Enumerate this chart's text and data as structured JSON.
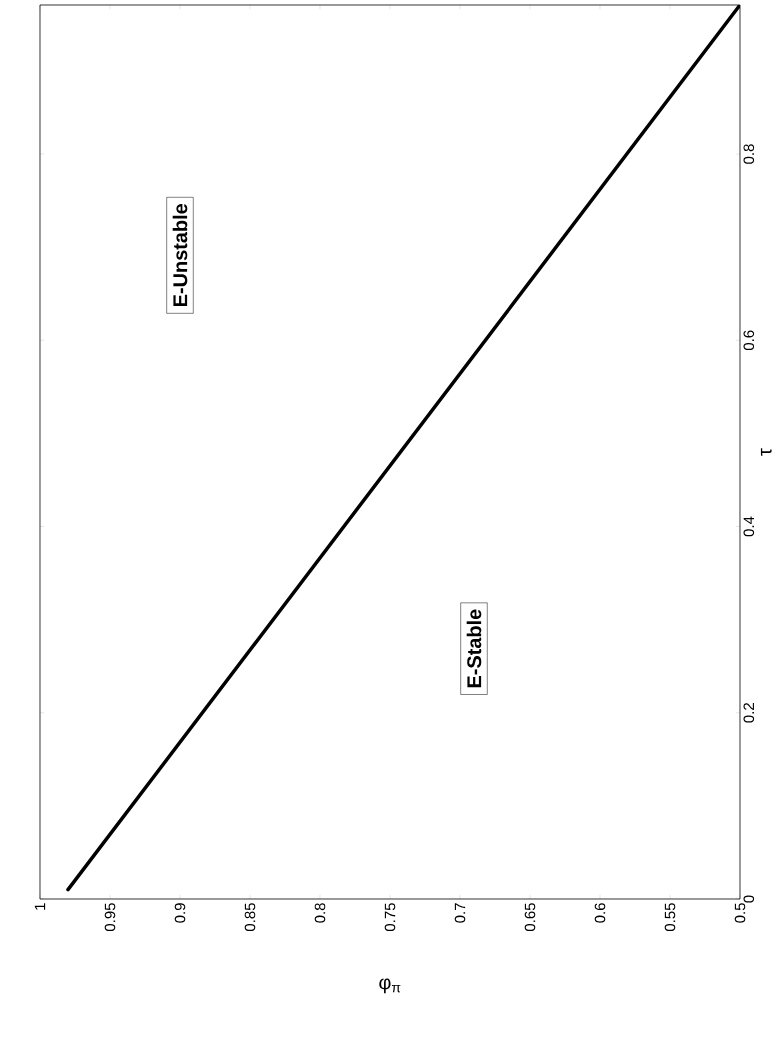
{
  "chart_data": {
    "type": "line",
    "xlabel": "φ$_{π}$",
    "ylabel": "τ",
    "x": [
      0.98,
      0.5
    ],
    "series": [
      {
        "color": "#000000",
        "values": [
          0.01,
          0.96
        ]
      }
    ],
    "xlim": [
      1,
      0.5
    ],
    "ylim": [
      0,
      0.96
    ],
    "xticks": [
      0.5,
      0.55,
      0.6,
      0.65,
      0.7,
      0.75,
      0.8,
      0.85,
      0.9,
      0.95,
      1
    ],
    "yticks": [
      0,
      0.2,
      0.4,
      0.6,
      0.8
    ],
    "annotations": [
      "E-Unstable",
      "E-Stable"
    ],
    "grid": false,
    "marker": "none",
    "line_style": "solid"
  }
}
